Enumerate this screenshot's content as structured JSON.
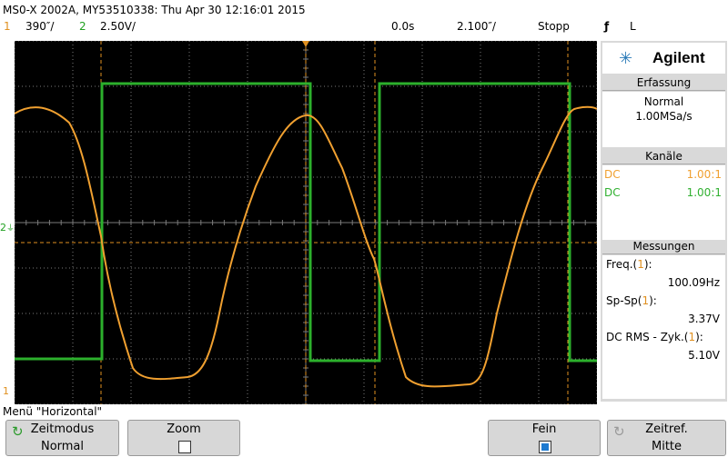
{
  "header": {
    "title": "MS0-X 2002A, MY53510338: Thu Apr 30 12:16:01 2015",
    "ch1_num": "1",
    "ch1_scale": "390″/",
    "ch2_num": "2",
    "ch2_scale": "2.50V/",
    "time_offset": "0.0s",
    "time_scale": "2.100″/",
    "run_state": "Stopp",
    "trigger_edge": "ƒ",
    "trigger_source": "L"
  },
  "panel": {
    "brand": "Agilent",
    "acquisition": {
      "title": "Erfassung",
      "mode": "Normal",
      "rate": "1.00MSa/s"
    },
    "channels": {
      "title": "Kanäle",
      "rows": [
        {
          "coupling": "DC",
          "probe": "1.00:1",
          "color": "#f0a030"
        },
        {
          "coupling": "DC",
          "probe": "1.00:1",
          "color": "#30b030"
        }
      ]
    },
    "measurements": {
      "title": "Messungen",
      "items": [
        {
          "label_prefix": "Freq.(",
          "ch": "1",
          "label_suffix": "):",
          "value": "100.09Hz"
        },
        {
          "label_prefix": "Sp-Sp(",
          "ch": "1",
          "label_suffix": "):",
          "value": "3.37V"
        },
        {
          "label_prefix": "DC RMS - Zyk.(",
          "ch": "1",
          "label_suffix": "):",
          "value": "5.10V"
        }
      ]
    }
  },
  "screen": {
    "ch2_marker": "2",
    "ch1_marker": "1"
  },
  "menu": {
    "label": "Menü \"Horizontal\"",
    "softkeys": [
      {
        "line1": "Zeitmodus",
        "line2": "Normal"
      },
      {
        "line1": "Zoom",
        "line2": ""
      },
      {
        "line1": "Fein",
        "line2": ""
      },
      {
        "line1": "Zeitref.",
        "line2": "Mitte"
      }
    ]
  },
  "colors": {
    "ch1": "#f0a030",
    "ch2": "#30b030",
    "trigger": "#f0a030"
  }
}
